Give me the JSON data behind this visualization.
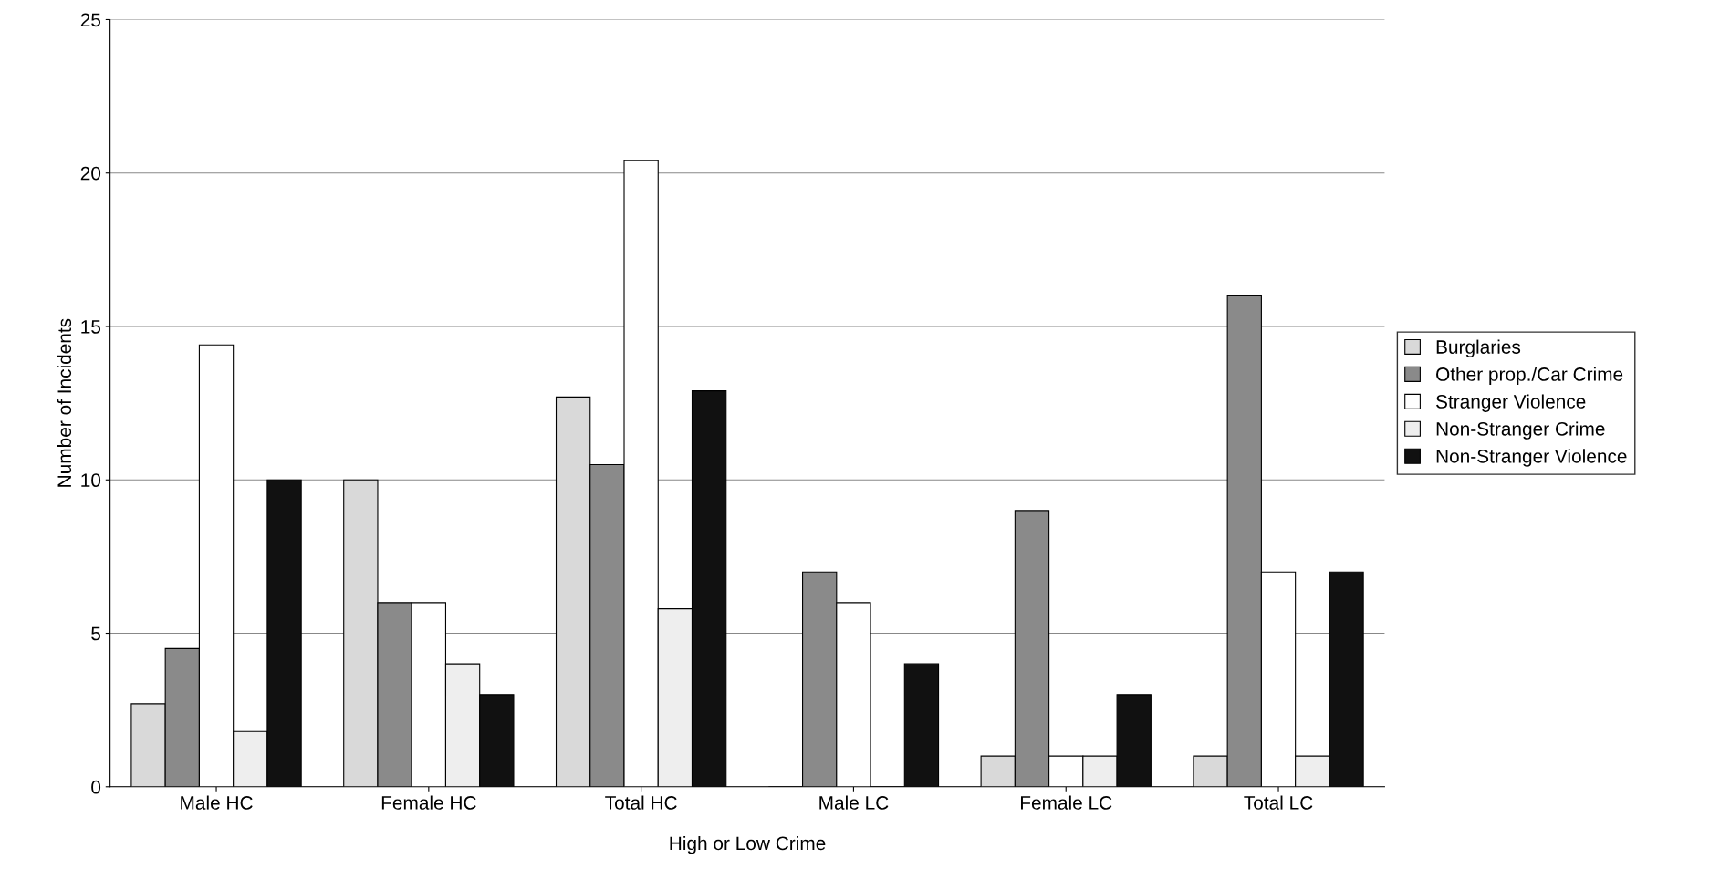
{
  "chart_data": {
    "type": "bar",
    "xlabel": "High or Low Crime",
    "ylabel": "Number of Incidents",
    "categories": [
      "Male HC",
      "Female HC",
      "Total HC",
      "Male LC",
      "Female LC",
      "Total LC"
    ],
    "series": [
      {
        "name": "Burglaries",
        "color": "#d9d9d9",
        "values": [
          2.7,
          10,
          12.7,
          0,
          1,
          1
        ]
      },
      {
        "name": "Other prop./Car Crime",
        "color": "#8a8a8a",
        "values": [
          4.5,
          6,
          10.5,
          7,
          9,
          16
        ]
      },
      {
        "name": "Stranger Violence",
        "color": "#ffffff",
        "values": [
          14.4,
          6,
          20.4,
          6,
          1,
          7
        ]
      },
      {
        "name": "Non-Stranger Crime",
        "color": "#eeeeee",
        "values": [
          1.8,
          4,
          5.8,
          0,
          1,
          1
        ]
      },
      {
        "name": "Non-Stranger Violence",
        "color": "#111111",
        "values": [
          10,
          3,
          12.9,
          4,
          3,
          7
        ]
      }
    ],
    "ylim": [
      0,
      25
    ],
    "yticks": [
      0,
      5,
      10,
      15,
      20,
      25
    ],
    "grid": "y",
    "legend": "right"
  }
}
